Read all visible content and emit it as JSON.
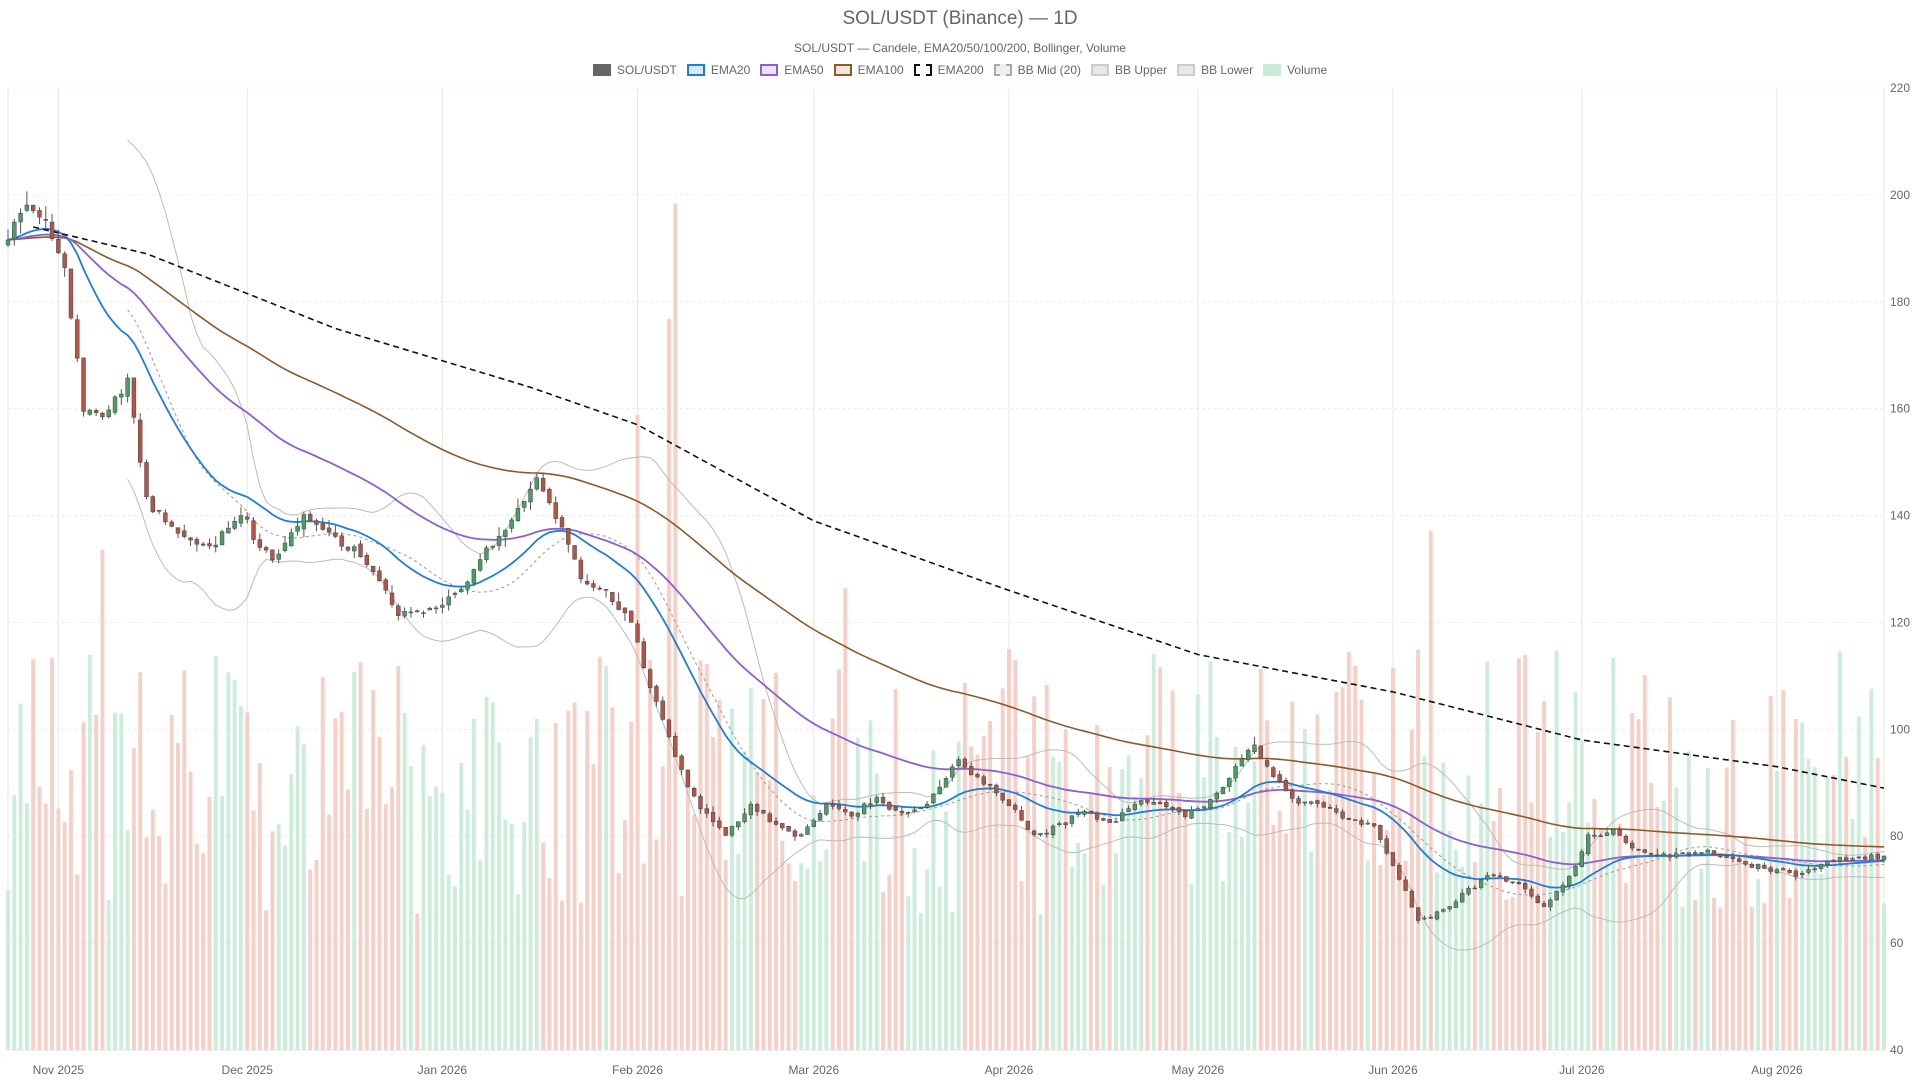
{
  "chart_data": {
    "type": "candlestick",
    "title": "SOL/USDT (Binance) — 1D",
    "subtitle": "SOL/USDT — Candele, EMA20/50/100/200, Bollinger, Volume",
    "legend": [
      {
        "name": "SOL/USDT",
        "fill": "#666666",
        "stroke": "#666666",
        "dash": false
      },
      {
        "name": "EMA20",
        "fill": "#d6ebf8",
        "stroke": "#1f7fd6",
        "dash": false
      },
      {
        "name": "EMA50",
        "fill": "#ece3f8",
        "stroke": "#8e5fd0",
        "dash": false
      },
      {
        "name": "EMA100",
        "fill": "#f3e4d9",
        "stroke": "#8b5a2b",
        "dash": false
      },
      {
        "name": "EMA200",
        "fill": "#ffffff",
        "stroke": "#111111",
        "dash": true
      },
      {
        "name": "BB Mid (20)",
        "fill": "#eeeeee",
        "stroke": "#aaaaaa",
        "dash": true
      },
      {
        "name": "BB Upper",
        "fill": "#e8e8e8",
        "stroke": "#cccccc",
        "dash": false
      },
      {
        "name": "BB Lower",
        "fill": "#e8e8e8",
        "stroke": "#cccccc",
        "dash": false
      },
      {
        "name": "Volume",
        "fill": "#c9ecd9",
        "stroke": "#c9ecd9",
        "dash": false
      }
    ],
    "x_range": [
      "2025-10-24",
      "2026-08-18"
    ],
    "x_ticks": [
      {
        "label": "Nov 2025",
        "date": "2025-11-01"
      },
      {
        "label": "Dec 2025",
        "date": "2025-12-01"
      },
      {
        "label": "Jan 2026",
        "date": "2026-01-01"
      },
      {
        "label": "Feb 2026",
        "date": "2026-02-01"
      },
      {
        "label": "Mar 2026",
        "date": "2026-03-01"
      },
      {
        "label": "Apr 2026",
        "date": "2026-04-01"
      },
      {
        "label": "May 2026",
        "date": "2026-05-01"
      },
      {
        "label": "Jun 2026",
        "date": "2026-06-01"
      },
      {
        "label": "Jul 2026",
        "date": "2026-07-01"
      },
      {
        "label": "Aug 2026",
        "date": "2026-08-01"
      }
    ],
    "y_axis": {
      "position": "right",
      "min": 40,
      "max": 220,
      "ticks": [
        40,
        60,
        80,
        100,
        120,
        140,
        160,
        180,
        200,
        220
      ]
    },
    "grid": true,
    "legend_position": "top-center",
    "colors": {
      "up": "#4a9d63",
      "down": "#b55444",
      "wick": "#555555",
      "volume_up": "#c9ecd9",
      "volume_down": "#f6ccc4",
      "ema20": "#1f7fd6",
      "ema50": "#8e5fd0",
      "ema100": "#8b5a2b",
      "ema200": "#111111",
      "bb_band": "#bbbbbb",
      "bb_mid": "#999999"
    },
    "price_anchors": [
      {
        "date": "2025-10-24",
        "close": 193
      },
      {
        "date": "2025-10-27",
        "close": 198
      },
      {
        "date": "2025-10-30",
        "close": 194
      },
      {
        "date": "2025-11-02",
        "close": 187
      },
      {
        "date": "2025-11-05",
        "close": 160
      },
      {
        "date": "2025-11-08",
        "close": 158
      },
      {
        "date": "2025-11-12",
        "close": 165
      },
      {
        "date": "2025-11-15",
        "close": 143
      },
      {
        "date": "2025-11-20",
        "close": 136
      },
      {
        "date": "2025-11-25",
        "close": 134
      },
      {
        "date": "2025-11-30",
        "close": 140
      },
      {
        "date": "2025-12-05",
        "close": 131
      },
      {
        "date": "2025-12-10",
        "close": 140
      },
      {
        "date": "2025-12-15",
        "close": 136
      },
      {
        "date": "2025-12-20",
        "close": 132
      },
      {
        "date": "2025-12-25",
        "close": 122
      },
      {
        "date": "2025-12-30",
        "close": 122
      },
      {
        "date": "2026-01-04",
        "close": 126
      },
      {
        "date": "2026-01-08",
        "close": 133
      },
      {
        "date": "2026-01-12",
        "close": 139
      },
      {
        "date": "2026-01-16",
        "close": 147
      },
      {
        "date": "2026-01-20",
        "close": 138
      },
      {
        "date": "2026-01-23",
        "close": 128
      },
      {
        "date": "2026-01-27",
        "close": 126
      },
      {
        "date": "2026-01-31",
        "close": 120
      },
      {
        "date": "2026-02-03",
        "close": 108
      },
      {
        "date": "2026-02-08",
        "close": 92
      },
      {
        "date": "2026-02-11",
        "close": 85
      },
      {
        "date": "2026-02-15",
        "close": 80
      },
      {
        "date": "2026-02-19",
        "close": 86
      },
      {
        "date": "2026-02-23",
        "close": 82
      },
      {
        "date": "2026-02-27",
        "close": 80
      },
      {
        "date": "2026-03-03",
        "close": 86
      },
      {
        "date": "2026-03-07",
        "close": 84
      },
      {
        "date": "2026-03-11",
        "close": 87
      },
      {
        "date": "2026-03-15",
        "close": 84
      },
      {
        "date": "2026-03-19",
        "close": 86
      },
      {
        "date": "2026-03-24",
        "close": 94
      },
      {
        "date": "2026-03-28",
        "close": 90
      },
      {
        "date": "2026-04-01",
        "close": 86
      },
      {
        "date": "2026-04-05",
        "close": 80
      },
      {
        "date": "2026-04-09",
        "close": 82
      },
      {
        "date": "2026-04-13",
        "close": 85
      },
      {
        "date": "2026-04-17",
        "close": 82
      },
      {
        "date": "2026-04-21",
        "close": 86
      },
      {
        "date": "2026-04-25",
        "close": 86
      },
      {
        "date": "2026-04-29",
        "close": 84
      },
      {
        "date": "2026-05-03",
        "close": 86
      },
      {
        "date": "2026-05-07",
        "close": 93
      },
      {
        "date": "2026-05-10",
        "close": 97
      },
      {
        "date": "2026-05-13",
        "close": 91
      },
      {
        "date": "2026-05-17",
        "close": 86
      },
      {
        "date": "2026-05-21",
        "close": 86
      },
      {
        "date": "2026-05-25",
        "close": 83
      },
      {
        "date": "2026-05-29",
        "close": 82
      },
      {
        "date": "2026-06-02",
        "close": 72
      },
      {
        "date": "2026-06-05",
        "close": 64
      },
      {
        "date": "2026-06-09",
        "close": 66
      },
      {
        "date": "2026-06-13",
        "close": 70
      },
      {
        "date": "2026-06-17",
        "close": 73
      },
      {
        "date": "2026-06-21",
        "close": 71
      },
      {
        "date": "2026-06-25",
        "close": 67
      },
      {
        "date": "2026-06-29",
        "close": 72
      },
      {
        "date": "2026-07-02",
        "close": 80
      },
      {
        "date": "2026-07-06",
        "close": 81
      },
      {
        "date": "2026-07-10",
        "close": 77
      },
      {
        "date": "2026-07-15",
        "close": 76
      },
      {
        "date": "2026-07-20",
        "close": 77
      },
      {
        "date": "2026-07-25",
        "close": 76
      },
      {
        "date": "2026-07-30",
        "close": 74
      },
      {
        "date": "2026-08-04",
        "close": 73
      },
      {
        "date": "2026-08-09",
        "close": 75
      },
      {
        "date": "2026-08-14",
        "close": 76
      },
      {
        "date": "2026-08-18",
        "close": 76
      }
    ],
    "ema200_anchors": [
      {
        "date": "2025-10-28",
        "value": 194
      },
      {
        "date": "2025-11-15",
        "value": 189
      },
      {
        "date": "2025-12-15",
        "value": 175
      },
      {
        "date": "2026-01-15",
        "value": 164
      },
      {
        "date": "2026-02-01",
        "value": 157
      },
      {
        "date": "2026-03-01",
        "value": 139
      },
      {
        "date": "2026-04-01",
        "value": 126
      },
      {
        "date": "2026-05-01",
        "value": 114
      },
      {
        "date": "2026-06-01",
        "value": 107
      },
      {
        "date": "2026-07-01",
        "value": 98
      },
      {
        "date": "2026-08-01",
        "value": 93
      },
      {
        "date": "2026-08-18",
        "value": 89
      }
    ],
    "volume_scale": {
      "min": 0,
      "max": 250
    },
    "volume_spikes": [
      {
        "date": "2026-02-07",
        "value": 220
      },
      {
        "date": "2026-02-06",
        "value": 190
      },
      {
        "date": "2026-02-01",
        "value": 165
      },
      {
        "date": "2026-06-07",
        "value": 135
      },
      {
        "date": "2025-11-08",
        "value": 130
      },
      {
        "date": "2026-03-06",
        "value": 120
      }
    ]
  }
}
